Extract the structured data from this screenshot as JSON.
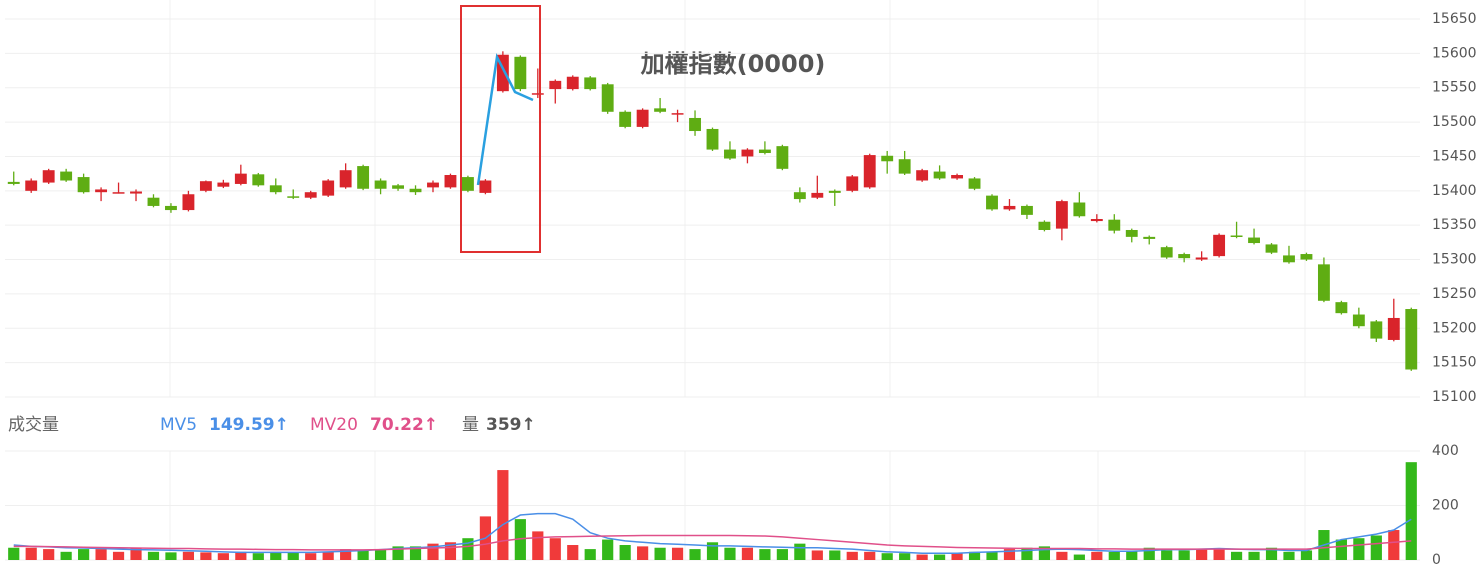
{
  "chart_data": [
    {
      "type": "candlestick",
      "title": "加權指數(0000)",
      "ylim": [
        15100,
        15650
      ],
      "yticks": [
        15100,
        15150,
        15200,
        15250,
        15300,
        15350,
        15400,
        15450,
        15500,
        15550,
        15600,
        15650
      ],
      "grid": true,
      "up_color": "#d9242b",
      "down_color": "#5fad13",
      "open": [
        15413,
        15400,
        15412,
        15428,
        15420,
        15398,
        15397,
        15396,
        15390,
        15378,
        15372,
        15400,
        15406,
        15410,
        15424,
        15408,
        15392,
        15390,
        15393,
        15405,
        15436,
        15415,
        15408,
        15403,
        15405,
        15405,
        15420,
        15397,
        15545,
        15595,
        15540,
        15548,
        15548,
        15565,
        15555,
        15515,
        15493,
        15520,
        15512,
        15506,
        15490,
        15460,
        15450,
        15460,
        15465,
        15398,
        15390,
        15400,
        15400,
        15405,
        15451,
        15446,
        15415,
        15428,
        15418,
        15418,
        15393,
        15373,
        15378,
        15355,
        15345,
        15383,
        15356,
        15358,
        15343,
        15333,
        15318,
        15308,
        15300,
        15305,
        15335,
        15332,
        15322,
        15306,
        15308,
        15293,
        15238,
        15220,
        15210,
        15183,
        15228
      ],
      "high": [
        15428,
        15418,
        15432,
        15432,
        15425,
        15405,
        15412,
        15402,
        15395,
        15382,
        15400,
        15415,
        15416,
        15438,
        15426,
        15418,
        15402,
        15400,
        15417,
        15440,
        15438,
        15418,
        15410,
        15408,
        15415,
        15425,
        15422,
        15417,
        15603,
        15597,
        15578,
        15562,
        15568,
        15567,
        15557,
        15517,
        15520,
        15535,
        15518,
        15517,
        15492,
        15472,
        15462,
        15472,
        15467,
        15405,
        15422,
        15402,
        15423,
        15454,
        15458,
        15458,
        15432,
        15437,
        15425,
        15420,
        15395,
        15388,
        15380,
        15357,
        15387,
        15398,
        15366,
        15366,
        15345,
        15335,
        15320,
        15310,
        15312,
        15338,
        15355,
        15345,
        15324,
        15320,
        15310,
        15303,
        15240,
        15230,
        15212,
        15243,
        15230
      ],
      "low": [
        15408,
        15397,
        15410,
        15413,
        15396,
        15385,
        15396,
        15385,
        15376,
        15368,
        15370,
        15398,
        15404,
        15408,
        15406,
        15395,
        15388,
        15388,
        15391,
        15403,
        15401,
        15395,
        15400,
        15394,
        15398,
        15403,
        15398,
        15395,
        15543,
        15545,
        15535,
        15527,
        15546,
        15546,
        15512,
        15491,
        15491,
        15513,
        15500,
        15480,
        15458,
        15445,
        15440,
        15453,
        15430,
        15383,
        15388,
        15378,
        15398,
        15403,
        15425,
        15423,
        15413,
        15416,
        15416,
        15401,
        15371,
        15371,
        15359,
        15341,
        15328,
        15361,
        15354,
        15338,
        15325,
        15322,
        15301,
        15296,
        15298,
        15303,
        15331,
        15322,
        15308,
        15294,
        15298,
        15238,
        15220,
        15200,
        15180,
        15181,
        15138
      ],
      "close": [
        15410,
        15415,
        15430,
        15415,
        15398,
        15402,
        15398,
        15399,
        15378,
        15372,
        15395,
        15414,
        15412,
        15425,
        15408,
        15398,
        15390,
        15398,
        15415,
        15430,
        15403,
        15403,
        15403,
        15398,
        15412,
        15423,
        15400,
        15415,
        15598,
        15548,
        15542,
        15560,
        15566,
        15548,
        15515,
        15493,
        15518,
        15515,
        15513,
        15487,
        15460,
        15447,
        15460,
        15455,
        15432,
        15388,
        15397,
        15397,
        15421,
        15452,
        15443,
        15425,
        15430,
        15418,
        15423,
        15403,
        15373,
        15378,
        15365,
        15343,
        15385,
        15363,
        15359,
        15342,
        15333,
        15330,
        15303,
        15302,
        15303,
        15336,
        15333,
        15324,
        15310,
        15296,
        15300,
        15240,
        15222,
        15203,
        15185,
        15215,
        15140
      ]
    },
    {
      "type": "volume",
      "title": "成交量",
      "ylim": [
        0,
        400
      ],
      "yticks": [
        0,
        200,
        400
      ],
      "grid": true,
      "up_color": "#f03a3a",
      "down_color": "#33b81a",
      "series": [
        {
          "name": "量",
          "last_label": "359↑",
          "values": [
            45,
            45,
            40,
            30,
            40,
            40,
            30,
            45,
            30,
            28,
            30,
            28,
            25,
            30,
            25,
            30,
            28,
            25,
            30,
            40,
            35,
            40,
            50,
            50,
            60,
            65,
            80,
            160,
            330,
            150,
            105,
            80,
            55,
            40,
            75,
            55,
            50,
            45,
            45,
            40,
            65,
            45,
            45,
            40,
            40,
            60,
            35,
            35,
            30,
            30,
            25,
            25,
            20,
            20,
            25,
            30,
            30,
            40,
            45,
            50,
            30,
            20,
            30,
            30,
            35,
            45,
            35,
            35,
            40,
            40,
            30,
            30,
            45,
            30,
            35,
            110,
            75,
            80,
            90,
            110,
            359
          ]
        },
        {
          "name": "MV5",
          "last_label": "149.59↑",
          "color": "#4a8fe7",
          "values": [
            55,
            50,
            48,
            45,
            44,
            42,
            40,
            38,
            37,
            36,
            34,
            32,
            30,
            28,
            28,
            28,
            28,
            28,
            30,
            32,
            35,
            38,
            42,
            45,
            48,
            55,
            62,
            80,
            130,
            165,
            170,
            170,
            150,
            100,
            80,
            70,
            65,
            60,
            58,
            55,
            52,
            52,
            50,
            48,
            47,
            45,
            45,
            42,
            40,
            35,
            30,
            28,
            25,
            25,
            25,
            28,
            30,
            32,
            35,
            38,
            40,
            38,
            35,
            32,
            32,
            35,
            38,
            38,
            40,
            42,
            40,
            38,
            38,
            35,
            35,
            55,
            75,
            85,
            95,
            110,
            149.59
          ]
        },
        {
          "name": "MV20",
          "last_label": "70.22↑",
          "color": "#e0508a",
          "values": [
            50,
            50,
            49,
            48,
            47,
            46,
            45,
            44,
            43,
            42,
            42,
            41,
            40,
            40,
            39,
            38,
            38,
            37,
            37,
            37,
            37,
            38,
            40,
            42,
            44,
            46,
            50,
            58,
            70,
            78,
            82,
            85,
            86,
            87,
            88,
            89,
            90,
            90,
            90,
            90,
            90,
            90,
            89,
            88,
            85,
            80,
            75,
            70,
            65,
            60,
            55,
            52,
            50,
            48,
            46,
            45,
            44,
            43,
            42,
            42,
            42,
            42,
            41,
            41,
            40,
            40,
            40,
            40,
            40,
            40,
            40,
            40,
            40,
            40,
            40,
            45,
            50,
            55,
            60,
            65,
            70.22
          ]
        }
      ]
    }
  ]
}
